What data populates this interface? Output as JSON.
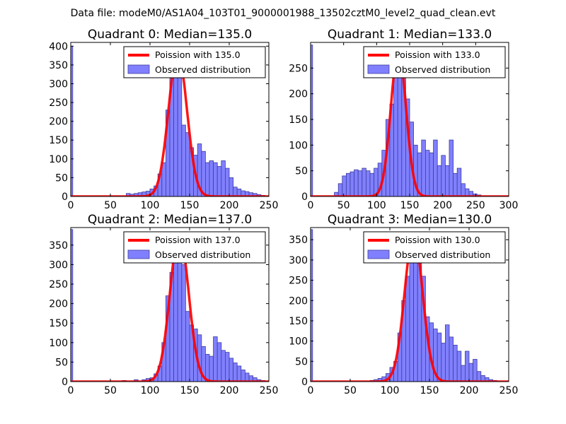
{
  "suptitle": "Data file: modeM0/AS1A04_103T01_9000001988_13502cztM0_level2_quad_clean.evt",
  "colors": {
    "bar_fill": "#8080ff",
    "bar_edge": "#3d3d9a",
    "curve": "#ff0000",
    "axes": "#000000",
    "background": "#ffffff"
  },
  "chart_data": [
    {
      "type": "bar",
      "title": "Quadrant 0: Median=135.0",
      "xlim": [
        0,
        250
      ],
      "ylim": [
        0,
        410
      ],
      "xticks": [
        0,
        50,
        100,
        150,
        200,
        250
      ],
      "yticks": [
        0,
        50,
        100,
        150,
        200,
        250,
        300,
        350,
        400
      ],
      "bin_width": 5,
      "zero_bin": 400,
      "bins": [
        [
          70,
          8
        ],
        [
          75,
          6
        ],
        [
          80,
          8
        ],
        [
          85,
          10
        ],
        [
          90,
          12
        ],
        [
          95,
          14
        ],
        [
          100,
          20
        ],
        [
          105,
          28
        ],
        [
          110,
          60
        ],
        [
          115,
          90
        ],
        [
          120,
          230
        ],
        [
          125,
          330
        ],
        [
          130,
          380
        ],
        [
          135,
          370
        ],
        [
          140,
          190
        ],
        [
          145,
          170
        ],
        [
          150,
          130
        ],
        [
          155,
          110
        ],
        [
          160,
          140
        ],
        [
          165,
          120
        ],
        [
          170,
          90
        ],
        [
          175,
          95
        ],
        [
          180,
          90
        ],
        [
          185,
          80
        ],
        [
          190,
          95
        ],
        [
          195,
          75
        ],
        [
          200,
          50
        ],
        [
          205,
          25
        ],
        [
          210,
          20
        ],
        [
          215,
          15
        ],
        [
          220,
          13
        ],
        [
          225,
          10
        ],
        [
          230,
          8
        ],
        [
          235,
          5
        ],
        [
          240,
          3
        ]
      ],
      "curve_mu": 135.0,
      "curve_peak": 383,
      "legend": [
        "Poission with 135.0",
        "Observed distribution"
      ]
    },
    {
      "type": "bar",
      "title": "Quadrant 1: Median=133.0",
      "xlim": [
        0,
        300
      ],
      "ylim": [
        0,
        300
      ],
      "xticks": [
        0,
        50,
        100,
        150,
        200,
        250,
        300
      ],
      "yticks": [
        0,
        50,
        100,
        150,
        200,
        250
      ],
      "bin_width": 6,
      "zero_bin": 295,
      "bins": [
        [
          36,
          8
        ],
        [
          42,
          25
        ],
        [
          48,
          40
        ],
        [
          54,
          45
        ],
        [
          60,
          48
        ],
        [
          66,
          52
        ],
        [
          72,
          50
        ],
        [
          78,
          55
        ],
        [
          84,
          50
        ],
        [
          90,
          45
        ],
        [
          96,
          55
        ],
        [
          102,
          65
        ],
        [
          108,
          90
        ],
        [
          114,
          150
        ],
        [
          120,
          180
        ],
        [
          126,
          250
        ],
        [
          132,
          280
        ],
        [
          138,
          260
        ],
        [
          144,
          190
        ],
        [
          150,
          145
        ],
        [
          156,
          100
        ],
        [
          162,
          85
        ],
        [
          168,
          110
        ],
        [
          174,
          90
        ],
        [
          180,
          85
        ],
        [
          186,
          110
        ],
        [
          192,
          60
        ],
        [
          198,
          80
        ],
        [
          204,
          60
        ],
        [
          210,
          110
        ],
        [
          216,
          45
        ],
        [
          222,
          55
        ],
        [
          228,
          25
        ],
        [
          234,
          15
        ],
        [
          240,
          10
        ],
        [
          246,
          5
        ],
        [
          252,
          3
        ]
      ],
      "curve_mu": 133.0,
      "curve_peak": 285,
      "legend": [
        "Poission with 133.0",
        "Observed distribution"
      ]
    },
    {
      "type": "bar",
      "title": "Quadrant 2: Median=137.0",
      "xlim": [
        0,
        250
      ],
      "ylim": [
        0,
        395
      ],
      "xticks": [
        0,
        50,
        100,
        150,
        200,
        250
      ],
      "yticks": [
        0,
        50,
        100,
        150,
        200,
        250,
        300,
        350
      ],
      "bin_width": 5,
      "zero_bin": 390,
      "bins": [
        [
          65,
          3
        ],
        [
          80,
          5
        ],
        [
          90,
          5
        ],
        [
          95,
          8
        ],
        [
          100,
          10
        ],
        [
          105,
          20
        ],
        [
          110,
          40
        ],
        [
          115,
          100
        ],
        [
          120,
          220
        ],
        [
          125,
          280
        ],
        [
          130,
          355
        ],
        [
          135,
          360
        ],
        [
          140,
          300
        ],
        [
          145,
          180
        ],
        [
          150,
          145
        ],
        [
          155,
          135
        ],
        [
          160,
          120
        ],
        [
          165,
          90
        ],
        [
          170,
          70
        ],
        [
          175,
          65
        ],
        [
          180,
          115
        ],
        [
          185,
          100
        ],
        [
          190,
          80
        ],
        [
          195,
          75
        ],
        [
          200,
          60
        ],
        [
          205,
          48
        ],
        [
          210,
          40
        ],
        [
          215,
          30
        ],
        [
          220,
          22
        ],
        [
          225,
          15
        ],
        [
          230,
          10
        ],
        [
          235,
          5
        ],
        [
          240,
          3
        ]
      ],
      "curve_mu": 137.0,
      "curve_peak": 380,
      "legend": [
        "Poission with 137.0",
        "Observed distribution"
      ]
    },
    {
      "type": "bar",
      "title": "Quadrant 3: Median=130.0",
      "xlim": [
        0,
        250
      ],
      "ylim": [
        0,
        380
      ],
      "xticks": [
        0,
        50,
        100,
        150,
        200,
        250
      ],
      "yticks": [
        0,
        50,
        100,
        150,
        200,
        250,
        300,
        350
      ],
      "bin_width": 5,
      "zero_bin": 375,
      "bins": [
        [
          75,
          3
        ],
        [
          80,
          5
        ],
        [
          85,
          8
        ],
        [
          90,
          12
        ],
        [
          95,
          20
        ],
        [
          100,
          35
        ],
        [
          105,
          50
        ],
        [
          110,
          120
        ],
        [
          115,
          200
        ],
        [
          120,
          260
        ],
        [
          125,
          300
        ],
        [
          130,
          365
        ],
        [
          135,
          300
        ],
        [
          140,
          260
        ],
        [
          145,
          160
        ],
        [
          150,
          145
        ],
        [
          155,
          130
        ],
        [
          160,
          120
        ],
        [
          165,
          95
        ],
        [
          170,
          140
        ],
        [
          175,
          110
        ],
        [
          180,
          90
        ],
        [
          185,
          75
        ],
        [
          190,
          40
        ],
        [
          195,
          75
        ],
        [
          200,
          45
        ],
        [
          205,
          55
        ],
        [
          210,
          25
        ],
        [
          215,
          15
        ],
        [
          220,
          10
        ],
        [
          225,
          5
        ],
        [
          230,
          3
        ]
      ],
      "curve_mu": 130.0,
      "curve_peak": 362,
      "legend": [
        "Poission with 130.0",
        "Observed distribution"
      ]
    }
  ]
}
